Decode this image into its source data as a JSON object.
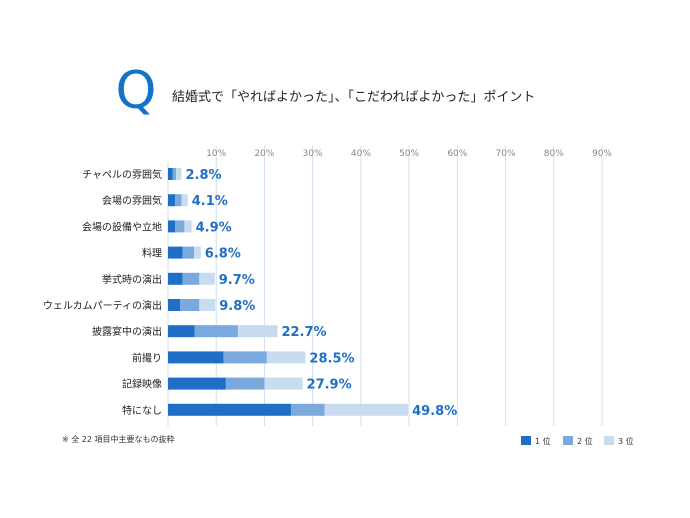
{
  "header": {
    "q_letter": "Q",
    "title": "結婚式で「やればよかった」、「こだわればよかった」ポイント"
  },
  "footnote": "※ 全 22 項目中主要なもの抜粋",
  "colors": {
    "rank1": "#1f6fc7",
    "rank2": "#7aa9de",
    "rank3": "#c9dcef",
    "value_label": "#1f6fc7",
    "grid": "#cfe0f1"
  },
  "chart_data": {
    "type": "bar",
    "orientation": "horizontal",
    "stacked": true,
    "xlim": [
      0,
      90
    ],
    "x_ticks": [
      "10%",
      "20%",
      "30%",
      "40%",
      "50%",
      "60%",
      "70%",
      "80%",
      "90%"
    ],
    "grid": true,
    "legend_position": "bottom-right",
    "categories": [
      "チャペルの雰囲気",
      "会場の雰囲気",
      "会場の設備や立地",
      "料理",
      "挙式時の演出",
      "ウェルカムパーティの演出",
      "披露宴中の演出",
      "前撮り",
      "記録映像",
      "特になし"
    ],
    "totals": [
      2.8,
      4.1,
      4.9,
      6.8,
      9.7,
      9.8,
      22.7,
      28.5,
      27.9,
      49.8
    ],
    "total_labels": [
      "2.8%",
      "4.1%",
      "4.9%",
      "6.8%",
      "9.7%",
      "9.8%",
      "22.7%",
      "28.5%",
      "27.9%",
      "49.8%"
    ],
    "series": [
      {
        "name": "1 位",
        "values": [
          1.0,
          1.5,
          1.5,
          3.0,
          3.0,
          2.5,
          5.5,
          11.5,
          12.0,
          25.5
        ]
      },
      {
        "name": "2 位",
        "values": [
          0.7,
          1.3,
          1.9,
          2.4,
          3.5,
          4.0,
          9.0,
          9.0,
          8.0,
          7.0
        ]
      },
      {
        "name": "3 位",
        "values": [
          1.1,
          1.3,
          1.5,
          1.4,
          3.2,
          3.3,
          8.2,
          8.0,
          7.9,
          17.3
        ]
      }
    ]
  }
}
